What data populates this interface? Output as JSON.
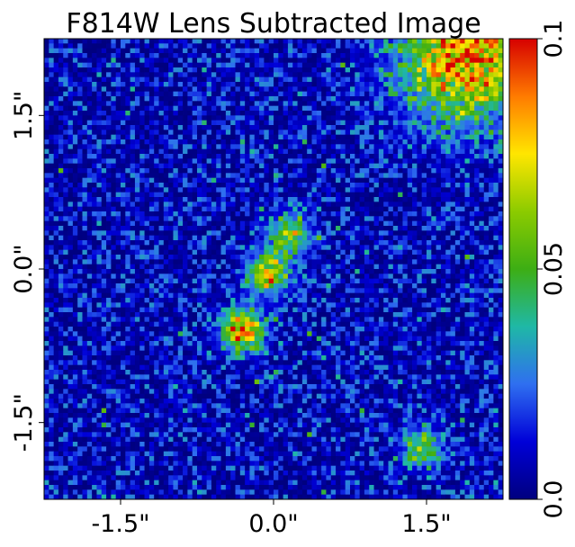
{
  "chart_data": {
    "type": "heatmap",
    "title": "F814W Lens Subtracted Image",
    "xlabel": "",
    "ylabel": "",
    "x_ticks": [
      "-1.5\"",
      "0.0\"",
      "1.5\""
    ],
    "x_tick_values": [
      -1.5,
      0.0,
      1.5
    ],
    "y_ticks": [
      "1.5\"",
      "0.0\"",
      "-1.5\""
    ],
    "y_tick_values": [
      1.5,
      0.0,
      -1.5
    ],
    "xlim": [
      -2.25,
      2.25
    ],
    "ylim": [
      -2.25,
      2.25
    ],
    "grid": false,
    "colormap": "jet-like (dark blue → blue → green → yellow → red)",
    "colorbar": {
      "ticks": [
        "0.0",
        "0.05",
        "0.1"
      ],
      "tick_values": [
        0.0,
        0.05,
        0.1
      ],
      "range": [
        0.0,
        0.1
      ],
      "stops": [
        "#00007f",
        "#0000d8",
        "#2f6ff0",
        "#1fb8a6",
        "#3dae14",
        "#8ccb00",
        "#ffe600",
        "#ff7b00",
        "#d60000"
      ]
    },
    "features": [
      {
        "description": "bright flux in upper-right corner",
        "x": 1.9,
        "y": 2.1,
        "intensity": 0.09
      },
      {
        "description": "central knot",
        "x": -0.05,
        "y": -0.05,
        "intensity": 0.08
      },
      {
        "description": "lower-left arc knot",
        "x": -0.3,
        "y": -0.6,
        "intensity": 0.09
      },
      {
        "description": "arc segment",
        "x": 0.15,
        "y": 0.35,
        "intensity": 0.06
      },
      {
        "description": "small source lower right",
        "x": 1.45,
        "y": -1.75,
        "intensity": 0.05
      }
    ]
  }
}
